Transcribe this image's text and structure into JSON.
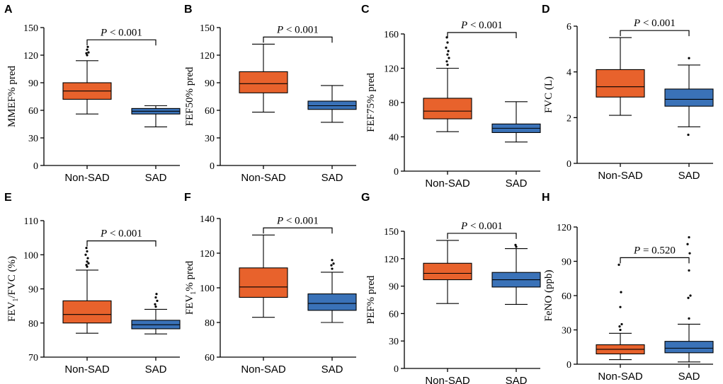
{
  "colors": {
    "non_sad": "#E8622C",
    "sad": "#3A72B8",
    "axis": "#000000"
  },
  "chart_data": [
    {
      "type": "box",
      "panel": "A",
      "ylabel": "MMEF% pred",
      "ylim": [
        0,
        150
      ],
      "yticks": [
        "0",
        "30",
        "60",
        "90",
        "120",
        "150"
      ],
      "categories": [
        "Non-SAD",
        "SAD"
      ],
      "p_prefix": "P",
      "p_text": " < 0.001",
      "series": [
        {
          "name": "Non-SAD",
          "whisker_low": 56,
          "q1": 72,
          "median": 81,
          "q3": 90,
          "whisker_high": 114,
          "outliers": [
            120,
            122,
            123,
            126,
            129
          ]
        },
        {
          "name": "SAD",
          "whisker_low": 42,
          "q1": 56,
          "median": 59,
          "q3": 62,
          "whisker_high": 65,
          "outliers": []
        }
      ]
    },
    {
      "type": "box",
      "panel": "B",
      "ylabel": "FEF50% pred",
      "ylim": [
        0,
        150
      ],
      "yticks": [
        "0",
        "30",
        "60",
        "90",
        "120",
        "150"
      ],
      "categories": [
        "Non-SAD",
        "SAD"
      ],
      "p_prefix": "P",
      "p_text": " < 0.001",
      "series": [
        {
          "name": "Non-SAD",
          "whisker_low": 58,
          "q1": 79,
          "median": 89,
          "q3": 102,
          "whisker_high": 132,
          "outliers": []
        },
        {
          "name": "SAD",
          "whisker_low": 47,
          "q1": 61,
          "median": 65,
          "q3": 70,
          "whisker_high": 87,
          "outliers": []
        }
      ]
    },
    {
      "type": "box",
      "panel": "C",
      "ylabel": "FEF75% pred",
      "ylim": [
        0,
        160
      ],
      "yticks": [
        "0",
        "40",
        "80",
        "120",
        "160"
      ],
      "categories": [
        "Non-SAD",
        "SAD"
      ],
      "p_prefix": "P",
      "p_text": " < 0.001",
      "series": [
        {
          "name": "Non-SAD",
          "whisker_low": 46,
          "q1": 61,
          "median": 70,
          "q3": 85,
          "whisker_high": 120,
          "outliers": [
            124,
            128,
            132,
            136,
            140,
            144,
            150,
            156
          ]
        },
        {
          "name": "SAD",
          "whisker_low": 34,
          "q1": 45,
          "median": 50,
          "q3": 55,
          "whisker_high": 81,
          "outliers": []
        }
      ]
    },
    {
      "type": "box",
      "panel": "D",
      "ylabel": "FVC (L)",
      "ylim": [
        0,
        6
      ],
      "yticks": [
        "0",
        "2",
        "4",
        "6"
      ],
      "categories": [
        "Non-SAD",
        "SAD"
      ],
      "p_prefix": "P",
      "p_text": " < 0.001",
      "series": [
        {
          "name": "Non-SAD",
          "whisker_low": 2.1,
          "q1": 2.9,
          "median": 3.35,
          "q3": 4.1,
          "whisker_high": 5.5,
          "outliers": []
        },
        {
          "name": "SAD",
          "whisker_low": 1.6,
          "q1": 2.5,
          "median": 2.8,
          "q3": 3.25,
          "whisker_high": 4.3,
          "outliers": [
            4.6,
            1.25
          ]
        }
      ]
    },
    {
      "type": "box",
      "panel": "E",
      "ylabel": "FEV1/FVC (%)",
      "ylabel_main": "FEV",
      "ylabel_sub": "1",
      "ylabel_rest": "/FVC (%)",
      "ylim": [
        70,
        110
      ],
      "yticks": [
        "70",
        "80",
        "90",
        "100",
        "110"
      ],
      "categories": [
        "Non-SAD",
        "SAD"
      ],
      "p_prefix": "P",
      "p_text": " < 0.001",
      "series": [
        {
          "name": "Non-SAD",
          "whisker_low": 77,
          "q1": 80,
          "median": 82.5,
          "q3": 86.5,
          "whisker_high": 95.5,
          "outliers": [
            96.5,
            97,
            97.5,
            98,
            99,
            100,
            101,
            102
          ]
        },
        {
          "name": "SAD",
          "whisker_low": 76.8,
          "q1": 78.3,
          "median": 79.5,
          "q3": 80.8,
          "whisker_high": 84,
          "outliers": [
            84.8,
            85.5,
            86.5,
            87.5,
            88.5
          ]
        }
      ]
    },
    {
      "type": "box",
      "panel": "F",
      "ylabel": "FEV1% pred",
      "ylabel_main": "FEV",
      "ylabel_sub": "1",
      "ylabel_rest": "% pred",
      "ylim": [
        60,
        140
      ],
      "yticks": [
        "60",
        "80",
        "100",
        "120",
        "140"
      ],
      "categories": [
        "Non-SAD",
        "SAD"
      ],
      "p_prefix": "P",
      "p_text": " < 0.001",
      "series": [
        {
          "name": "Non-SAD",
          "whisker_low": 83,
          "q1": 94.5,
          "median": 100.5,
          "q3": 111.5,
          "whisker_high": 130.5,
          "outliers": []
        },
        {
          "name": "SAD",
          "whisker_low": 80,
          "q1": 87,
          "median": 91,
          "q3": 96.5,
          "whisker_high": 109,
          "outliers": [
            111,
            113,
            114,
            116
          ]
        }
      ]
    },
    {
      "type": "box",
      "panel": "G",
      "ylabel": "PEF% pred",
      "ylim": [
        0,
        150
      ],
      "yticks": [
        "0",
        "30",
        "60",
        "90",
        "120",
        "150"
      ],
      "categories": [
        "Non-SAD",
        "SAD"
      ],
      "p_prefix": "P",
      "p_text": " < 0.001",
      "series": [
        {
          "name": "Non-SAD",
          "whisker_low": 71,
          "q1": 97,
          "median": 104,
          "q3": 115,
          "whisker_high": 140,
          "outliers": []
        },
        {
          "name": "SAD",
          "whisker_low": 70,
          "q1": 89,
          "median": 97,
          "q3": 105,
          "whisker_high": 131,
          "outliers": [
            133,
            135
          ]
        }
      ]
    },
    {
      "type": "box",
      "panel": "H",
      "ylabel": "FeNO (ppb)",
      "ylim": [
        0,
        120
      ],
      "yticks": [
        "0",
        "30",
        "60",
        "90",
        "120"
      ],
      "categories": [
        "Non-SAD",
        "SAD"
      ],
      "p_prefix": "P",
      "p_text": " = 0.520",
      "series": [
        {
          "name": "Non-SAD",
          "whisker_low": 4,
          "q1": 9,
          "median": 13,
          "q3": 17,
          "whisker_high": 27,
          "outliers": [
            30,
            33,
            35,
            50,
            63,
            87
          ]
        },
        {
          "name": "SAD",
          "whisker_low": 2,
          "q1": 10,
          "median": 14,
          "q3": 20,
          "whisker_high": 35,
          "outliers": [
            40,
            58,
            60,
            82,
            97,
            105,
            111
          ]
        }
      ]
    }
  ]
}
